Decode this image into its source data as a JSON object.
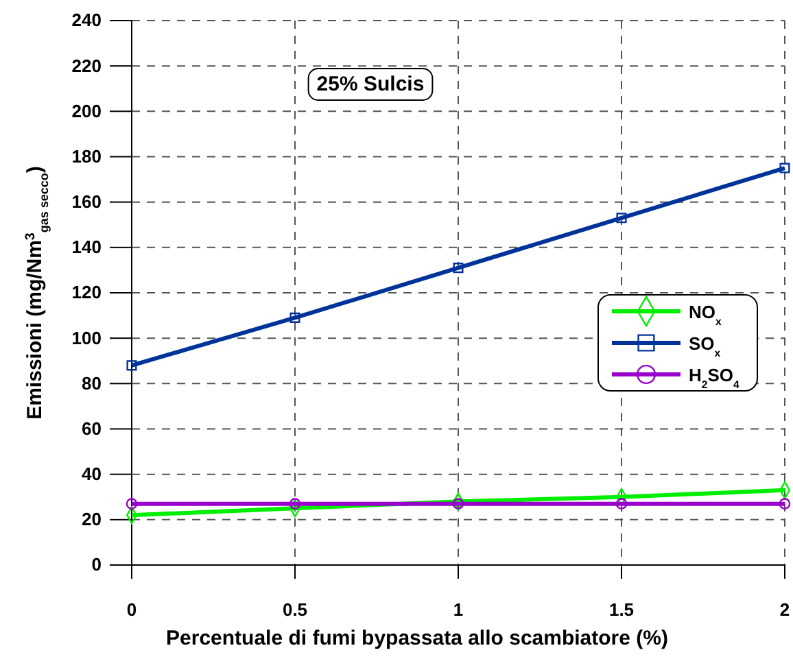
{
  "chart_data": {
    "type": "line",
    "xlabel": "Percentuale di fumi bypassata allo scambiatore (%)",
    "ylabel": "Emissioni (mg/Nm$^{3}$$_{gas secco}$)",
    "x": [
      0,
      0.5,
      1,
      1.5,
      2
    ],
    "series": [
      {
        "name": "NO$_{x}$",
        "color": "#00ee00",
        "marker": "diamond",
        "values": [
          22,
          25,
          28,
          30,
          33
        ]
      },
      {
        "name": "SO$_{x}$",
        "color": "#003399",
        "marker": "square",
        "values": [
          88,
          109,
          131,
          153,
          175
        ]
      },
      {
        "name": "H$_{2}$SO$_{4}$",
        "color": "#9900cc",
        "marker": "circle",
        "values": [
          27,
          27,
          27,
          27,
          27
        ]
      }
    ],
    "xlim": [
      0,
      2
    ],
    "xticks": [
      0,
      0.5,
      1,
      1.5,
      2
    ],
    "ylim": [
      0,
      240
    ],
    "yticks": [
      0,
      20,
      40,
      60,
      80,
      100,
      120,
      140,
      160,
      180,
      200,
      220,
      240
    ],
    "grid": true,
    "legend": "right",
    "annotations": [
      "25% Sulcis"
    ]
  }
}
